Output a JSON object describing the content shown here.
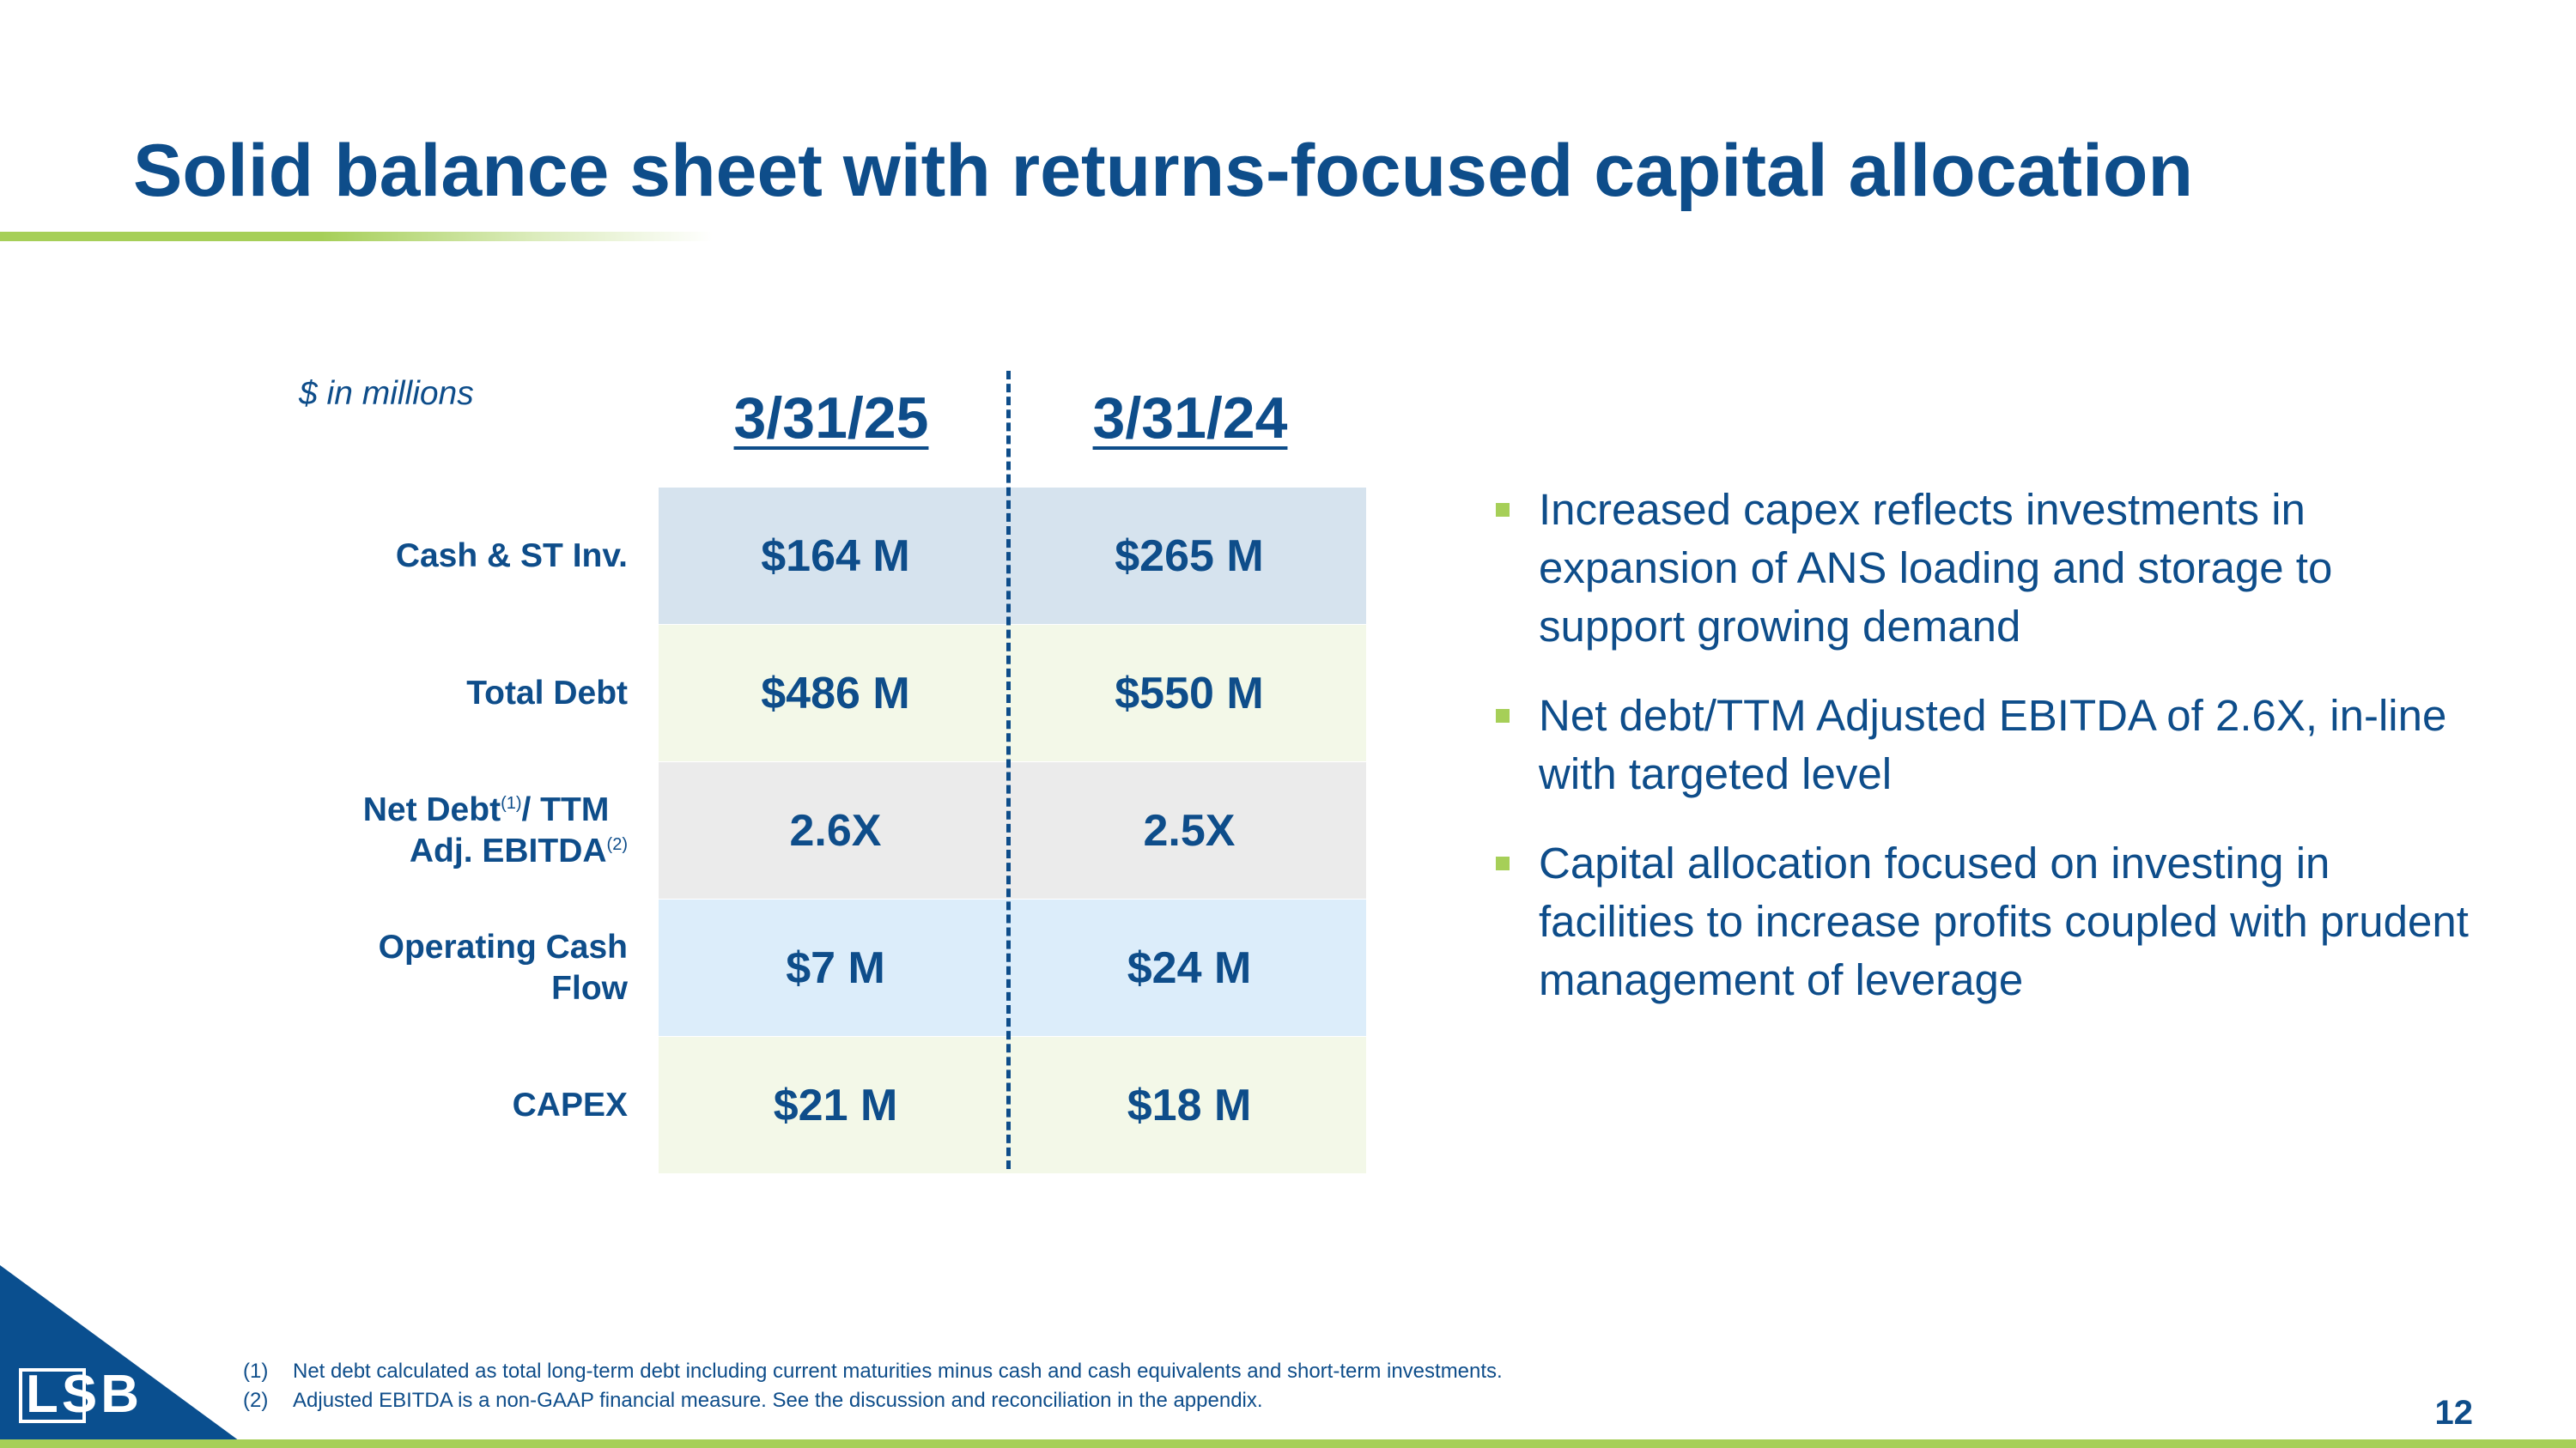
{
  "title": "Solid balance sheet with returns-focused capital allocation",
  "units_note": "$ in millions",
  "columns": [
    "3/31/25",
    "3/31/24"
  ],
  "rows": [
    {
      "label": "Cash & ST Inv.",
      "values": [
        "$164 M",
        "$265 M"
      ]
    },
    {
      "label": "Total Debt",
      "values": [
        "$486 M",
        "$550 M"
      ]
    },
    {
      "label_part1": "Net Debt",
      "label_sup1": "(1)",
      "label_part2": "/ TTM",
      "label_part3": "Adj. EBITDA",
      "label_sup2": "(2)",
      "values": [
        "2.6X",
        "2.5X"
      ]
    },
    {
      "label_line1": "Operating Cash",
      "label_line2": "Flow",
      "values": [
        "$7 M",
        "$24 M"
      ]
    },
    {
      "label": "CAPEX",
      "values": [
        "$21 M",
        "$18 M"
      ]
    }
  ],
  "row_colors": [
    "#d6e3ee",
    "#f3f8e8",
    "#ebebeb",
    "#dcedfa",
    "#f3f8e8"
  ],
  "bullets": [
    "Increased capex reflects investments in expansion of ANS loading and storage to support growing demand",
    "Net debt/TTM Adjusted EBITDA of 2.6X, in-line with targeted level",
    "Capital allocation focused on investing in facilities to increase profits coupled with prudent management of leverage"
  ],
  "footnotes": [
    {
      "num": "(1)",
      "text": "Net debt calculated as total long-term debt including current maturities minus cash and cash equivalents and short-term investments."
    },
    {
      "num": "(2)",
      "text": "Adjusted EBITDA is a non-GAAP financial measure.  See the discussion and reconciliation in the appendix."
    }
  ],
  "logo": "LSB",
  "page_number": "12",
  "colors": {
    "brand_blue": "#0e4d8a",
    "accent_green": "#a6cf58",
    "corner_blue": "#0a4f8f"
  }
}
